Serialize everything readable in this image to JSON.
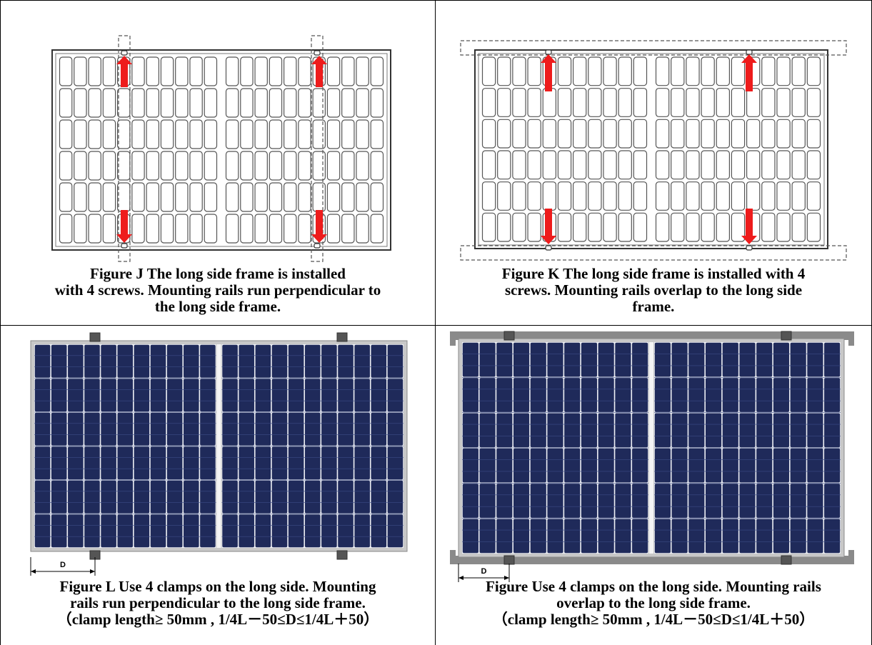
{
  "figures": {
    "j": {
      "lines": [
        "Figure J The long side frame is installed",
        "with 4 screws. Mounting rails run perpendicular to",
        "the long side frame."
      ]
    },
    "k": {
      "lines": [
        "Figure K The long side frame is installed with 4",
        "screws. Mounting rails overlap to the long side",
        "frame."
      ]
    },
    "l": {
      "lines": [
        "Figure L Use 4 clamps on the long side. Mounting",
        "rails run perpendicular to the long side frame.",
        "（clamp length≥ 50mm , 1/4L－50≤D≤1/4L＋50）"
      ],
      "dim_label": "D"
    },
    "m": {
      "lines": [
        "Figure Use 4 clamps on the long side. Mounting rails",
        "overlap to the long side frame.",
        "（clamp length≥ 50mm , 1/4L－50≤D≤1/4L＋50）"
      ],
      "dim_label": "D"
    }
  },
  "colors": {
    "arrow": "#ee1c1c",
    "cell": "#1f2a5a",
    "frame": "#c8c8c8",
    "rail": "#8a8a8a"
  }
}
